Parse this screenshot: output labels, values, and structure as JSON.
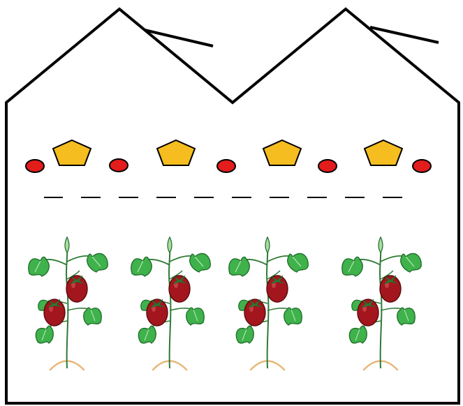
{
  "colors": {
    "outline": "#000000",
    "background": "#ffffff",
    "lamp_fill": "#f5bd1f",
    "dot_fill": "#e31c1c",
    "leaf_fill": "#3fb24b",
    "leaf_dark": "#1f6b2a",
    "tomato_fill": "#a3161d",
    "tomato_dark": "#5a0a0e",
    "stem": "#2e7a34",
    "root": "#e8b77a"
  },
  "greenhouse": {
    "roof_vents": 2,
    "lamp_icon": "pentagon-lamp-icon",
    "dot_icon": "red-oval-dot-icon",
    "dash_icon": "dash-line-icon",
    "plant_icon": "tomato-plant-icon",
    "lamps": 4,
    "dots": 5,
    "dashes": 10,
    "plants": 4
  }
}
